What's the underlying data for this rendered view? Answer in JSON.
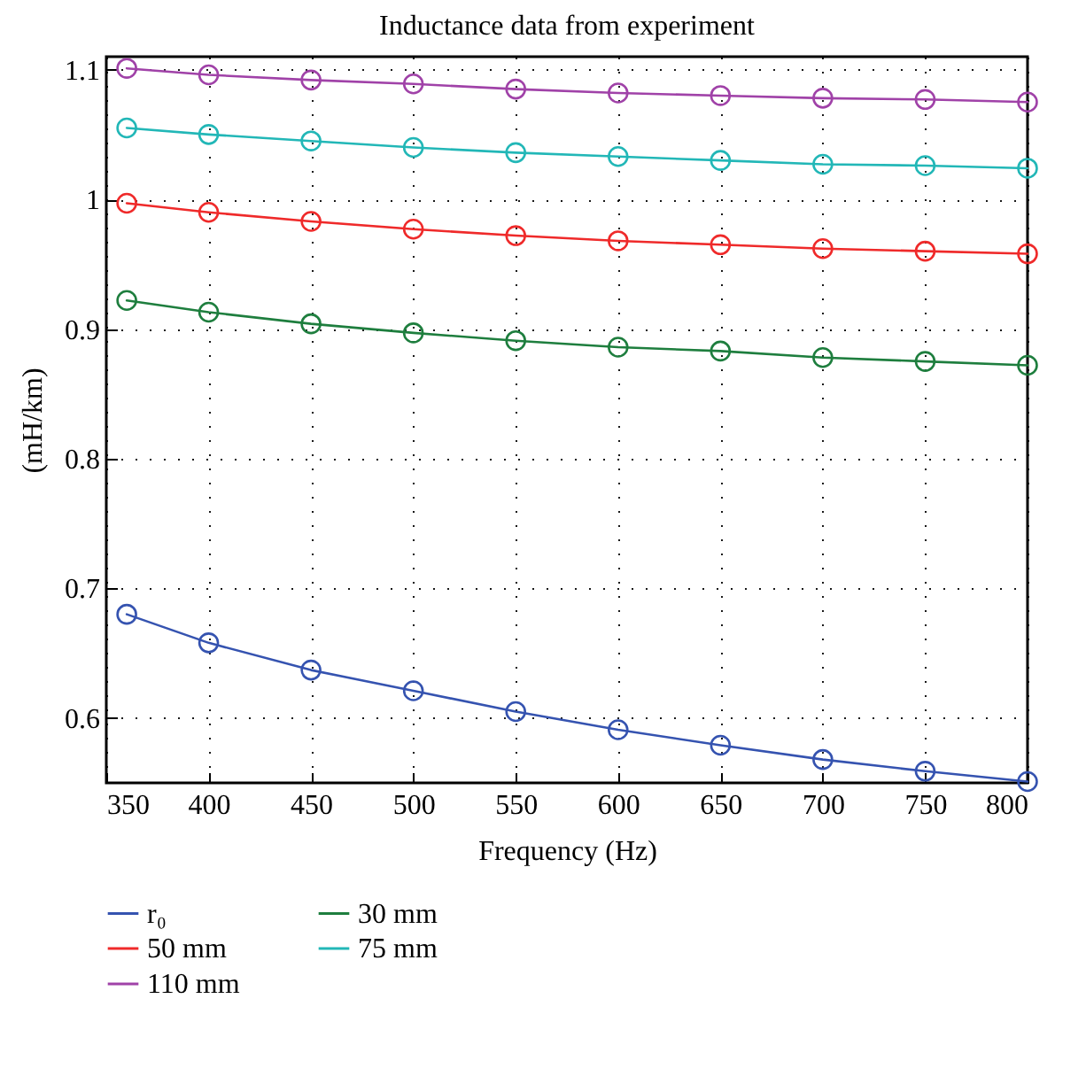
{
  "chart_data": {
    "type": "line",
    "title": "Inductance data from experiment",
    "xlabel": "Frequency (Hz)",
    "ylabel": "(mH/km)",
    "x": [
      360,
      400,
      450,
      500,
      550,
      600,
      650,
      700,
      750,
      800
    ],
    "series": [
      {
        "name": "r₀",
        "color": "#3553b0",
        "values": [
          0.68,
          0.658,
          0.637,
          0.621,
          0.605,
          0.591,
          0.579,
          0.568,
          0.559,
          0.551
        ]
      },
      {
        "name": "30 mm",
        "color": "#1e7e3e",
        "values": [
          0.922,
          0.913,
          0.904,
          0.897,
          0.891,
          0.886,
          0.883,
          0.878,
          0.875,
          0.872
        ]
      },
      {
        "name": "50 mm",
        "color": "#ef2a2a",
        "values": [
          0.997,
          0.99,
          0.983,
          0.977,
          0.972,
          0.968,
          0.965,
          0.962,
          0.96,
          0.958
        ]
      },
      {
        "name": "75 mm",
        "color": "#22b7b7",
        "values": [
          1.055,
          1.05,
          1.045,
          1.04,
          1.036,
          1.033,
          1.03,
          1.027,
          1.026,
          1.024
        ]
      },
      {
        "name": "110 mm",
        "color": "#a042a8",
        "values": [
          1.101,
          1.096,
          1.092,
          1.089,
          1.085,
          1.082,
          1.08,
          1.078,
          1.077,
          1.075
        ]
      }
    ],
    "xlim": [
      350,
      800
    ],
    "xticks": [
      350,
      400,
      450,
      500,
      550,
      600,
      650,
      700,
      750,
      800
    ],
    "ylim": [
      0.55,
      1.11
    ],
    "yticks": [
      0.6,
      0.7,
      0.8,
      0.9,
      1,
      1.1
    ],
    "grid": true,
    "legend": "bottom",
    "marker": "circle",
    "line_style": "solid"
  }
}
